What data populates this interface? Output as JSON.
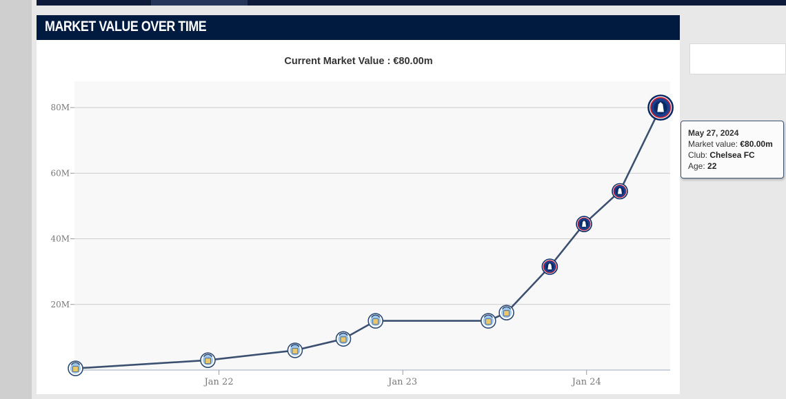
{
  "panel": {
    "title": "MARKET VALUE OVER TIME"
  },
  "colors": {
    "header": "#001a40",
    "line": "#3b5070",
    "plot_bg": "#f8f8f8",
    "grid": "#cccccc",
    "city_blue": "#6cabdd",
    "chelsea_blue": "#034694"
  },
  "chart_data": {
    "type": "line",
    "title": "Current Market Value : €80.00m",
    "xlabel": "",
    "ylabel": "",
    "x_ticks": [
      "Jan 22",
      "Jan 23",
      "Jan 24"
    ],
    "y_ticks": [
      "20M",
      "40M",
      "60M",
      "80M"
    ],
    "ylim": [
      0,
      88
    ],
    "xlim": [
      "2021-03-20",
      "2024-06-15"
    ],
    "grid": true,
    "series": [
      {
        "points": [
          {
            "date": "2021-03-22",
            "value": 0.5,
            "club": "Manchester City",
            "icon": "man-city-crest-icon"
          },
          {
            "date": "2021-12-10",
            "value": 3.0,
            "club": "Manchester City",
            "icon": "man-city-crest-icon"
          },
          {
            "date": "2022-06-01",
            "value": 6.0,
            "club": "Manchester City",
            "icon": "man-city-crest-icon"
          },
          {
            "date": "2022-09-05",
            "value": 9.5,
            "club": "Manchester City",
            "icon": "man-city-crest-icon"
          },
          {
            "date": "2022-11-08",
            "value": 15.0,
            "club": "Manchester City",
            "icon": "man-city-crest-icon"
          },
          {
            "date": "2023-06-20",
            "value": 15.0,
            "club": "Manchester City",
            "icon": "man-city-crest-icon"
          },
          {
            "date": "2023-07-26",
            "value": 17.5,
            "club": "Manchester City",
            "icon": "man-city-crest-icon"
          },
          {
            "date": "2023-10-20",
            "value": 31.5,
            "club": "Chelsea FC",
            "icon": "chelsea-crest-icon"
          },
          {
            "date": "2023-12-27",
            "value": 44.5,
            "club": "Chelsea FC",
            "icon": "chelsea-crest-icon"
          },
          {
            "date": "2024-03-07",
            "value": 54.5,
            "club": "Chelsea FC",
            "icon": "chelsea-crest-icon"
          },
          {
            "date": "2024-05-27",
            "value": 80.0,
            "club": "Chelsea FC",
            "icon": "chelsea-crest-icon"
          }
        ]
      }
    ]
  },
  "tooltip": {
    "date": "May 27, 2024",
    "market_value_label": "Market value: ",
    "market_value": "€80.00m",
    "club_label": "Club: ",
    "club": "Chelsea FC",
    "age_label": "Age: ",
    "age": "22"
  }
}
